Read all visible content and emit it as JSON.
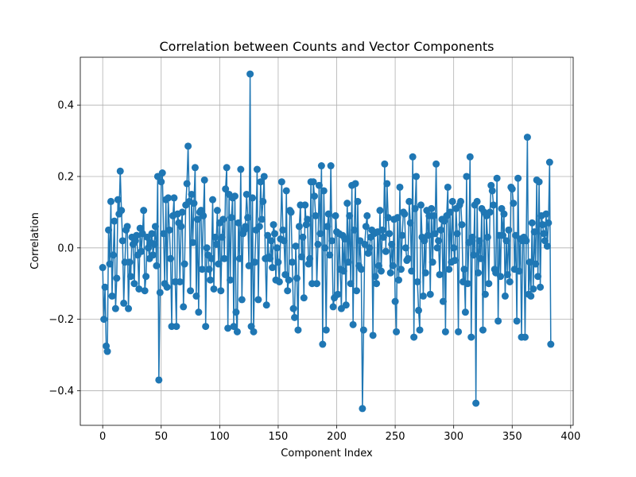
{
  "chart_data": {
    "type": "line",
    "title": "Correlation between Counts and Vector Components",
    "xlabel": "Component Index",
    "ylabel": "Correlation",
    "color": "#1f77b4",
    "grid": true,
    "xlim": [
      -19.15,
      402.15
    ],
    "ylim": [
      -0.497,
      0.534
    ],
    "xticks": [
      0,
      50,
      100,
      150,
      200,
      250,
      300,
      350,
      400
    ],
    "yticks": [
      {
        "value": -0.4,
        "label": "−0.4"
      },
      {
        "value": -0.2,
        "label": "−0.2"
      },
      {
        "value": 0,
        "label": "0.0"
      },
      0.2,
      0.4
    ],
    "x": [
      0,
      1,
      2,
      3,
      4,
      5,
      6,
      7,
      8,
      9,
      10,
      11,
      12,
      13,
      14,
      15,
      16,
      17,
      18,
      19,
      20,
      21,
      22,
      23,
      24,
      25,
      26,
      27,
      28,
      29,
      30,
      31,
      32,
      33,
      34,
      35,
      36,
      37,
      38,
      39,
      40,
      41,
      42,
      43,
      44,
      45,
      46,
      47,
      48,
      49,
      50,
      51,
      52,
      53,
      54,
      55,
      56,
      57,
      58,
      59,
      60,
      61,
      62,
      63,
      64,
      65,
      66,
      67,
      68,
      69,
      70,
      71,
      72,
      73,
      74,
      75,
      76,
      77,
      78,
      79,
      80,
      81,
      82,
      83,
      84,
      85,
      86,
      87,
      88,
      89,
      90,
      91,
      92,
      93,
      94,
      95,
      96,
      97,
      98,
      99,
      100,
      101,
      102,
      103,
      104,
      105,
      106,
      107,
      108,
      109,
      110,
      111,
      112,
      113,
      114,
      115,
      116,
      117,
      118,
      119,
      120,
      121,
      122,
      123,
      124,
      125,
      126,
      127,
      128,
      129,
      130,
      131,
      132,
      133,
      134,
      135,
      136,
      137,
      138,
      139,
      140,
      141,
      142,
      143,
      144,
      145,
      146,
      147,
      148,
      149,
      150,
      151,
      152,
      153,
      154,
      155,
      156,
      157,
      158,
      159,
      160,
      161,
      162,
      163,
      164,
      165,
      166,
      167,
      168,
      169,
      170,
      171,
      172,
      173,
      174,
      175,
      176,
      177,
      178,
      179,
      180,
      181,
      182,
      183,
      184,
      185,
      186,
      187,
      188,
      189,
      190,
      191,
      192,
      193,
      194,
      195,
      196,
      197,
      198,
      199,
      200,
      201,
      202,
      203,
      204,
      205,
      206,
      207,
      208,
      209,
      210,
      211,
      212,
      213,
      214,
      215,
      216,
      217,
      218,
      219,
      220,
      221,
      222,
      223,
      224,
      225,
      226,
      227,
      228,
      229,
      230,
      231,
      232,
      233,
      234,
      235,
      236,
      237,
      238,
      239,
      240,
      241,
      242,
      243,
      244,
      245,
      246,
      247,
      248,
      249,
      250,
      251,
      252,
      253,
      254,
      255,
      256,
      257,
      258,
      259,
      260,
      261,
      262,
      263,
      264,
      265,
      266,
      267,
      268,
      269,
      270,
      271,
      272,
      273,
      274,
      275,
      276,
      277,
      278,
      279,
      280,
      281,
      282,
      283,
      284,
      285,
      286,
      287,
      288,
      289,
      290,
      291,
      292,
      293,
      294,
      295,
      296,
      297,
      298,
      299,
      300,
      301,
      302,
      303,
      304,
      305,
      306,
      307,
      308,
      309,
      310,
      311,
      312,
      313,
      314,
      315,
      316,
      317,
      318,
      319,
      320,
      321,
      322,
      323,
      324,
      325,
      326,
      327,
      328,
      329,
      330,
      331,
      332,
      333,
      334,
      335,
      336,
      337,
      338,
      339,
      340,
      341,
      342,
      343,
      344,
      345,
      346,
      347,
      348,
      349,
      350,
      351,
      352,
      353,
      354,
      355,
      356,
      357,
      358,
      359,
      360,
      361,
      362,
      363,
      364,
      365,
      366,
      367,
      368,
      369,
      370,
      371,
      372,
      373,
      374,
      375,
      376,
      377,
      378,
      379,
      380,
      381,
      382,
      383
    ],
    "values": [
      -0.055,
      -0.2,
      -0.11,
      -0.275,
      -0.29,
      0.05,
      -0.045,
      0.13,
      -0.135,
      -0.02,
      0.075,
      -0.17,
      -0.085,
      0.135,
      0.095,
      0.215,
      0.105,
      0.02,
      -0.155,
      -0.04,
      0.05,
      0.06,
      -0.17,
      -0.04,
      -0.08,
      0.03,
      0.01,
      -0.1,
      0.02,
      0.035,
      -0.02,
      -0.115,
      0.055,
      -0.01,
      0.04,
      0.105,
      -0.12,
      -0.08,
      0.03,
      0.0,
      -0.03,
      0.015,
      0.04,
      -0.02,
      0.01,
      0.06,
      -0.05,
      0.2,
      -0.37,
      -0.125,
      0.185,
      0.21,
      0.04,
      -0.1,
      0.135,
      -0.11,
      0.14,
      0.05,
      -0.03,
      -0.22,
      0.09,
      0.14,
      -0.095,
      -0.22,
      0.095,
      0.07,
      -0.095,
      0.06,
      0.1,
      -0.165,
      -0.045,
      0.12,
      0.18,
      0.285,
      0.13,
      -0.12,
      0.15,
      0.015,
      0.125,
      0.225,
      -0.135,
      0.08,
      -0.18,
      0.1,
      0.105,
      -0.06,
      0.09,
      0.19,
      -0.22,
      0.0,
      -0.02,
      -0.06,
      -0.09,
      -0.03,
      0.135,
      -0.115,
      0.03,
      0.01,
      0.105,
      -0.045,
      0.07,
      -0.12,
      0.03,
      0.08,
      -0.03,
      0.165,
      0.225,
      -0.225,
      0.15,
      -0.09,
      0.085,
      0.14,
      -0.22,
      0.145,
      -0.18,
      -0.235,
      0.07,
      -0.03,
      0.22,
      -0.145,
      0.04,
      0.05,
      0.06,
      0.15,
      0.085,
      -0.05,
      0.487,
      -0.22,
      0.14,
      -0.235,
      -0.04,
      0.05,
      0.22,
      -0.145,
      0.06,
      0.185,
      0.08,
      0.13,
      0.2,
      -0.03,
      -0.16,
      0.035,
      -0.025,
      -0.03,
      0.02,
      -0.055,
      0.065,
      0.04,
      -0.09,
      0.0,
      -0.04,
      -0.095,
      0.025,
      0.185,
      0.05,
      0.02,
      -0.075,
      0.16,
      -0.12,
      -0.09,
      0.105,
      0.1,
      -0.04,
      -0.17,
      -0.195,
      0.005,
      -0.085,
      -0.23,
      0.06,
      0.12,
      -0.025,
      0.03,
      -0.14,
      0.12,
      0.065,
      0.08,
      -0.045,
      -0.03,
      0.185,
      -0.1,
      0.185,
      0.145,
      0.09,
      -0.1,
      0.01,
      0.175,
      0.04,
      0.23,
      -0.27,
      0.16,
      0.0,
      -0.23,
      0.06,
      0.095,
      -0.02,
      0.23,
      0.02,
      -0.165,
      -0.14,
      0.09,
      0.045,
      -0.13,
      0.04,
      -0.06,
      -0.17,
      0.035,
      -0.065,
      0.025,
      -0.16,
      0.125,
      -0.04,
      0.09,
      -0.1,
      0.175,
      -0.215,
      0.05,
      0.18,
      -0.12,
      0.13,
      -0.05,
      0.02,
      -0.06,
      -0.45,
      -0.23,
      0.01,
      0.06,
      0.09,
      -0.015,
      0.0,
      0.03,
      0.05,
      -0.245,
      0.04,
      -0.08,
      -0.1,
      0.045,
      -0.05,
      0.105,
      -0.065,
      0.05,
      0.03,
      0.235,
      -0.01,
      0.18,
      0.085,
      0.04,
      -0.07,
      0.01,
      -0.05,
      0.08,
      -0.15,
      -0.235,
      0.085,
      -0.09,
      0.17,
      -0.06,
      0.035,
      0.1,
      0.095,
      0.0,
      -0.035,
      -0.03,
      0.13,
      0.07,
      -0.065,
      0.255,
      -0.25,
      0.11,
      0.2,
      -0.095,
      -0.175,
      -0.23,
      0.12,
      0.03,
      -0.135,
      0.02,
      -0.07,
      0.105,
      0.035,
      0.09,
      -0.13,
      0.11,
      -0.04,
      0.09,
      0.04,
      0.235,
      0.0,
      0.02,
      -0.075,
      0.05,
      0.08,
      -0.15,
      0.075,
      -0.235,
      0.09,
      0.17,
      -0.06,
      0.1,
      -0.04,
      0.13,
      0.0,
      -0.035,
      0.11,
      0.04,
      -0.235,
      0.12,
      0.13,
      0.065,
      -0.095,
      -0.06,
      -0.18,
      0.2,
      -0.1,
      0.015,
      0.255,
      -0.25,
      0.03,
      -0.02,
      0.12,
      -0.435,
      0.13,
      -0.07,
      0.02,
      -0.03,
      0.11,
      -0.23,
      0.1,
      -0.13,
      0.09,
      0.03,
      -0.1,
      0.1,
      0.175,
      0.16,
      0.12,
      -0.06,
      -0.07,
      0.195,
      -0.205,
      0.035,
      -0.08,
      0.11,
      0.035,
      0.095,
      -0.135,
      0.02,
      -0.075,
      0.05,
      -0.095,
      0.17,
      0.165,
      0.125,
      -0.06,
      0.035,
      -0.205,
      0.195,
      -0.065,
      0.025,
      -0.25,
      0.02,
      0.03,
      -0.25,
      0.02,
      0.31,
      -0.13,
      -0.04,
      -0.135,
      0.07,
      -0.115,
      0.045,
      -0.045,
      0.19,
      -0.08,
      0.185,
      -0.11,
      0.09,
      0.065,
      0.04,
      0.02,
      0.095,
      0.005,
      0.07,
      0.24,
      -0.27
    ]
  }
}
